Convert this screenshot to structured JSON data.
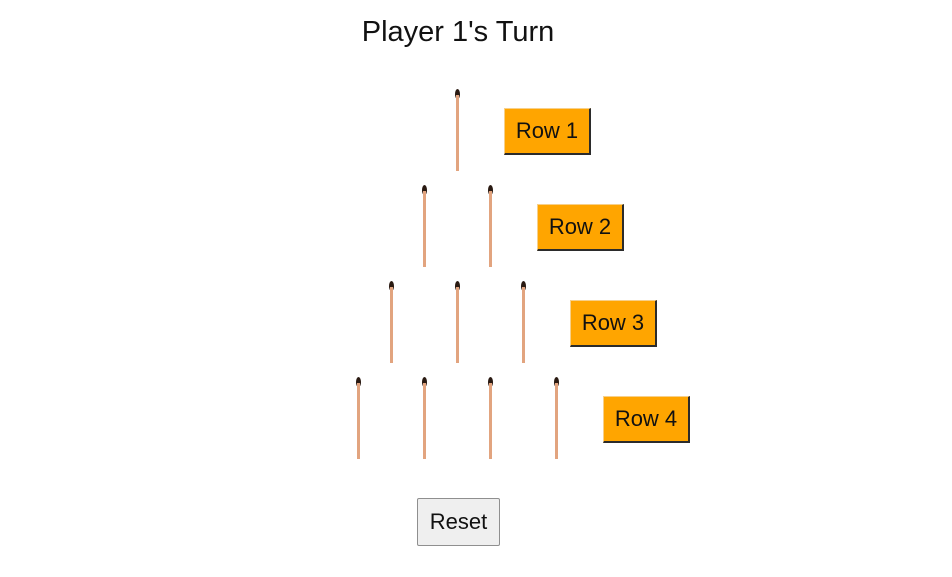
{
  "status": {
    "turn_text": "Player 1's Turn"
  },
  "board": {
    "rows": [
      {
        "label": "Row 1",
        "matches": 1
      },
      {
        "label": "Row 2",
        "matches": 2
      },
      {
        "label": "Row 3",
        "matches": 3
      },
      {
        "label": "Row 4",
        "matches": 4
      }
    ]
  },
  "controls": {
    "reset_label": "Reset"
  },
  "colors": {
    "row_button": "#ffa500",
    "match_stick": "#e2a47f",
    "match_head": "#2a1a12"
  },
  "icons": {
    "match": "matchstick-icon"
  }
}
